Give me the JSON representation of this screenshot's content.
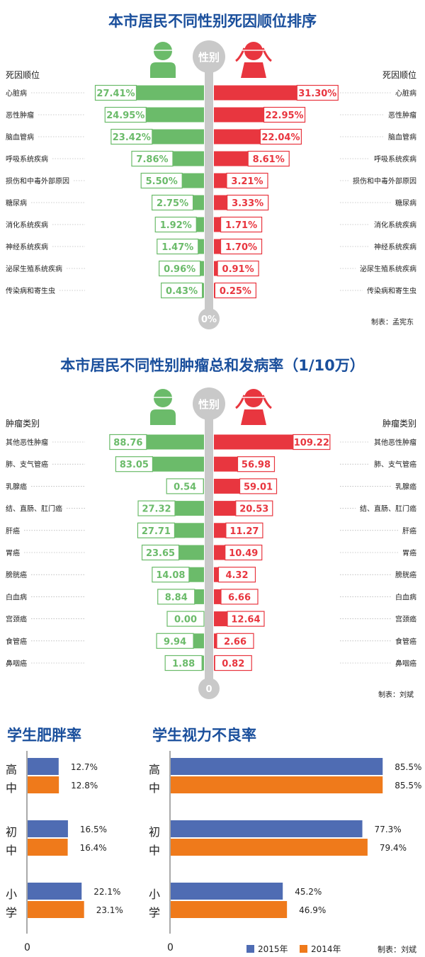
{
  "colors": {
    "male": "#6bbb6a",
    "female": "#e8363f",
    "spine": "#c9c9c9",
    "title": "#1a4f9c",
    "y2015": "#4f6cb3",
    "y2014": "#ef7a1b"
  },
  "section1": {
    "title": "本市居民不同性别死因顺位排序",
    "gender_label": "性别",
    "left_header": "死因顺位",
    "right_header": "死因顺位",
    "zero_label": "0%",
    "credit": "制表：孟宪东",
    "male_icon": "male-person-icon",
    "female_icon": "female-person-icon"
  },
  "section2": {
    "title": "本市居民不同性别肿瘤总和发病率（1/10万）",
    "gender_label": "性别",
    "left_header": "肿瘤类别",
    "right_header": "肿瘤类别",
    "zero_label": "0",
    "credit": "制表：刘斌",
    "male_icon": "male-person-icon",
    "female_icon": "female-person-icon"
  },
  "section3": {
    "obesity_title": "学生肥胖率",
    "vision_title": "学生视力不良率",
    "groups": [
      "高中",
      "初中",
      "小学"
    ],
    "zero_label": "0",
    "legend_2015": "2015年",
    "legend_2014": "2014年",
    "credit": "制表：刘斌"
  },
  "chart_data": [
    {
      "type": "bar",
      "title": "本市居民不同性别死因顺位排序",
      "categories": [
        "心脏病",
        "恶性肿瘤",
        "脑血管病",
        "呼吸系统疾病",
        "损伤和中毒外部原因",
        "糖尿病",
        "消化系统疾病",
        "神经系统疾病",
        "泌尿生殖系统疾病",
        "传染病和寄生虫"
      ],
      "series": [
        {
          "name": "男",
          "values": [
            27.41,
            24.95,
            23.42,
            7.86,
            5.5,
            2.75,
            1.92,
            1.47,
            0.96,
            0.43
          ]
        },
        {
          "name": "女",
          "values": [
            31.3,
            22.95,
            22.04,
            8.61,
            3.21,
            3.33,
            1.71,
            1.7,
            0.91,
            0.25
          ]
        }
      ],
      "labels": {
        "male": [
          "27.41%",
          "24.95%",
          "23.42%",
          "7.86%",
          "5.50%",
          "2.75%",
          "1.92%",
          "1.47%",
          "0.96%",
          "0.43%"
        ],
        "female": [
          "31.30%",
          "22.95%",
          "22.04%",
          "8.61%",
          "3.21%",
          "3.33%",
          "1.71%",
          "1.70%",
          "0.91%",
          "0.25%"
        ]
      },
      "unit": "%"
    },
    {
      "type": "bar",
      "title": "本市居民不同性别肿瘤总和发病率（1/10万）",
      "categories": [
        "其他恶性肿瘤",
        "肺、支气管癌",
        "乳腺癌",
        "结、直肠、肛门癌",
        "肝癌",
        "胃癌",
        "膀胱癌",
        "白血病",
        "宫颈癌",
        "食管癌",
        "鼻咽癌"
      ],
      "series": [
        {
          "name": "男",
          "values": [
            88.76,
            83.05,
            0.54,
            27.32,
            27.71,
            23.65,
            14.08,
            8.84,
            0.0,
            9.94,
            1.88
          ]
        },
        {
          "name": "女",
          "values": [
            109.22,
            56.98,
            59.01,
            20.53,
            11.27,
            10.49,
            4.32,
            6.66,
            12.64,
            2.66,
            0.82
          ]
        }
      ],
      "labels": {
        "male": [
          "88.76",
          "83.05",
          "0.54",
          "27.32",
          "27.71",
          "23.65",
          "14.08",
          "8.84",
          "0.00",
          "9.94",
          "1.88"
        ],
        "female": [
          "109.22",
          "56.98",
          "59.01",
          "20.53",
          "11.27",
          "10.49",
          "4.32",
          "6.66",
          "12.64",
          "2.66",
          "0.82"
        ]
      }
    },
    {
      "type": "bar",
      "title": "学生肥胖率",
      "categories": [
        "高中",
        "初中",
        "小学"
      ],
      "series": [
        {
          "name": "2015年",
          "values": [
            12.7,
            16.5,
            22.1
          ]
        },
        {
          "name": "2014年",
          "values": [
            12.8,
            16.4,
            23.1
          ]
        }
      ],
      "labels": {
        "2015年": [
          "12.7%",
          "16.5%",
          "22.1%"
        ],
        "2014年": [
          "12.8%",
          "16.4%",
          "23.1%"
        ]
      }
    },
    {
      "type": "bar",
      "title": "学生视力不良率",
      "categories": [
        "高中",
        "初中",
        "小学"
      ],
      "series": [
        {
          "name": "2015年",
          "values": [
            85.5,
            77.3,
            45.2
          ]
        },
        {
          "name": "2014年",
          "values": [
            85.5,
            79.4,
            46.9
          ]
        }
      ],
      "labels": {
        "2015年": [
          "85.5%",
          "77.3%",
          "45.2%"
        ],
        "2014年": [
          "85.5%",
          "79.4%",
          "46.9%"
        ]
      }
    }
  ]
}
